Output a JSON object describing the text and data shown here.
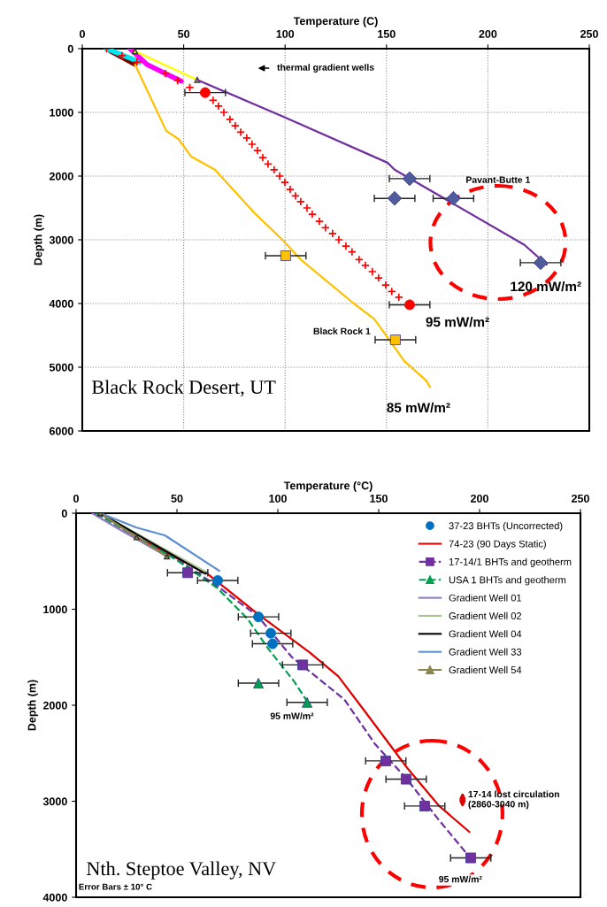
{
  "chart_data": [
    {
      "type": "line",
      "xlabel": "Temperature (C)",
      "ylabel": "Depth (m)",
      "xlim": [
        0,
        250
      ],
      "ylim": [
        6000,
        0
      ],
      "xticks": [
        0,
        50,
        100,
        150,
        200,
        250
      ],
      "yticks": [
        0,
        1000,
        2000,
        3000,
        4000,
        5000,
        6000
      ],
      "grid": true,
      "legend": false,
      "series": [
        {
          "color": "#800000",
          "x": [
            14,
            25.7
          ],
          "values": [
            40,
            240
          ],
          "marker": "none",
          "line_style": "solid"
        },
        {
          "color": "#00e5ee",
          "x": [
            12,
            28.3
          ],
          "values": [
            0,
            210
          ],
          "marker": "none",
          "line_style": "solid"
        },
        {
          "color": "#ff00ff",
          "x": [
            23.5,
            32,
            48.8
          ],
          "values": [
            0,
            250,
            510
          ],
          "marker": "none",
          "line_style": "solid"
        },
        {
          "color": "#ffff00",
          "x": [
            26,
            56.7
          ],
          "values": [
            40,
            490
          ],
          "marker": "triangle",
          "line_style": "solid"
        },
        {
          "color": "#7030a0",
          "x": [
            56.7,
            100,
            150.5,
            154,
            218,
            229
          ],
          "values": [
            490,
            1080,
            1790,
            1900,
            3080,
            3390
          ],
          "marker": "none",
          "line_style": "solid"
        },
        {
          "type": "scatter",
          "color": "#4f5b9a",
          "x": [
            161.4,
            154,
            183,
            226
          ],
          "values": [
            2040,
            2350,
            2350,
            3360
          ],
          "xerrors": [
            10,
            10,
            10,
            10
          ],
          "marker": "diamond"
        },
        {
          "type": "scatter",
          "color": "#ff0000",
          "x": [
            12,
            19.6,
            27,
            41,
            47,
            53,
            64.5,
            67.2,
            69.8,
            72.8,
            75.4,
            78.1,
            81.1,
            83.7,
            86.4,
            89,
            91.6,
            94.6,
            97.3,
            99.9,
            102.5,
            105.1,
            107.7,
            110.8,
            113.4,
            116.9,
            119.9,
            123.4,
            126.5,
            130,
            133,
            136.5,
            139.6,
            143,
            146.1,
            149.6,
            152.6,
            156.1
          ],
          "values": [
            0,
            110,
            210,
            390,
            500,
            610,
            810,
            900,
            1000,
            1110,
            1210,
            1310,
            1400,
            1500,
            1600,
            1710,
            1810,
            1900,
            2000,
            2100,
            2210,
            2310,
            2400,
            2500,
            2600,
            2710,
            2810,
            2900,
            3000,
            3100,
            3190,
            3310,
            3400,
            3500,
            3600,
            3710,
            3810,
            3900
          ],
          "marker": "cross"
        },
        {
          "type": "scatter",
          "color": "#ff0000",
          "x": [
            60.6,
            161.4
          ],
          "values": [
            690,
            4020
          ],
          "xerrors": [
            10,
            10
          ],
          "marker": "circle"
        },
        {
          "color": "#ffc000",
          "x": [
            26,
            41.4,
            47.5,
            53.6,
            65.4,
            84.6,
            99,
            107.7,
            133.9,
            143.9,
            150,
            158.7,
            169.6,
            171.4
          ],
          "values": [
            250,
            1290,
            1420,
            1690,
            1900,
            2570,
            3010,
            3310,
            4000,
            4240,
            4510,
            4900,
            5210,
            5310
          ],
          "marker": "none",
          "line_style": "solid"
        },
        {
          "type": "scatter",
          "color": "#ffc000",
          "x": [
            100.3,
            154.4
          ],
          "values": [
            3250,
            4570
          ],
          "xerrors": [
            10,
            10
          ],
          "marker": "square"
        }
      ],
      "annotations": [
        "thermal gradient wells",
        "Pavant-Butte 1",
        "Black Rock 1",
        "120 mW/m²",
        "95 mW/m²",
        "85 mW/m²",
        "Black Rock Desert, UT"
      ]
    },
    {
      "type": "line",
      "xlabel": "Temperature (°C)",
      "ylabel": "Depth (m)",
      "xlim": [
        0,
        250
      ],
      "ylim": [
        4000,
        0
      ],
      "xticks": [
        0,
        50,
        100,
        150,
        200,
        250
      ],
      "yticks": [
        0,
        1000,
        2000,
        3000,
        4000
      ],
      "grid": false,
      "legend": "top right",
      "series": [
        {
          "type": "scatter",
          "name": "37-23 BHTs (Uncorrected)",
          "color": "#0070c0",
          "x": [
            70.2,
            90.4,
            96.5,
            97.4
          ],
          "values": [
            700,
            1080,
            1250,
            1360
          ],
          "xerrors": [
            10,
            10,
            10,
            10
          ],
          "marker": "circle"
        },
        {
          "name": "74-23 (90 Days Static)",
          "color": "#e00000",
          "x": [
            12,
            30,
            50,
            64.5,
            89.5,
            115.8,
            130,
            143,
            164,
            180,
            195
          ],
          "values": [
            0,
            250,
            470,
            620,
            1040,
            1450,
            1700,
            2060,
            2650,
            3050,
            3320
          ],
          "marker": "none",
          "line_style": "solid"
        },
        {
          "color": "#7030a0",
          "x": [
            10,
            30,
            50,
            70,
            90,
            107,
            133,
            148,
            164,
            180,
            195
          ],
          "values": [
            0,
            250,
            480,
            760,
            1070,
            1500,
            1940,
            2400,
            2770,
            3200,
            3580
          ],
          "marker": "none",
          "line_style": "dashed"
        },
        {
          "type": "scatter",
          "name": "17-14/1 BHTs and geotherm",
          "color": "#7030a0",
          "x": [
            55.3,
            112.3,
            153.5,
            163.6,
            172.8,
            195.6
          ],
          "values": [
            620,
            1580,
            2580,
            2770,
            3050,
            3590
          ],
          "xerrors": [
            10,
            10,
            10,
            10,
            10,
            10
          ],
          "marker": "square",
          "line_style": "dashed"
        },
        {
          "color": "#00a050",
          "x": [
            10,
            30,
            50,
            70,
            85,
            95.2,
            108,
            114.5
          ],
          "values": [
            0,
            250,
            490,
            780,
            1100,
            1410,
            1750,
            1960
          ],
          "marker": "none",
          "line_style": "dashed"
        },
        {
          "type": "scatter",
          "name": "USA 1 BHTs and geotherm",
          "color": "#00a050",
          "x": [
            90.4,
            114.5
          ],
          "values": [
            1770,
            1970
          ],
          "xerrors": [
            10,
            10
          ],
          "marker": "triangle",
          "line_style": "dashed"
        },
        {
          "name": "Gradient Well 01",
          "color": "#8e7cc3",
          "x": [
            8,
            20,
            35,
            45
          ],
          "values": [
            0,
            150,
            330,
            450
          ],
          "marker": "none",
          "line_style": "solid"
        },
        {
          "name": "Gradient Well 02",
          "color": "#a9c48f",
          "x": [
            12,
            40,
            65
          ],
          "values": [
            0,
            330,
            620
          ],
          "marker": "none",
          "line_style": "solid"
        },
        {
          "name": "Gradient Well 04",
          "color": "#000000",
          "x": [
            12,
            35,
            64
          ],
          "values": [
            0,
            280,
            630
          ],
          "marker": "none",
          "line_style": "solid"
        },
        {
          "name": "Gradient Well 33",
          "color": "#5b8fd0",
          "x": [
            12,
            30,
            44,
            71
          ],
          "values": [
            0,
            150,
            230,
            600
          ],
          "marker": "none",
          "line_style": "solid"
        },
        {
          "name": "Gradient Well 54",
          "color": "#8b864e",
          "x": [
            12,
            30,
            45
          ],
          "values": [
            0,
            250,
            450
          ],
          "marker": "triangle",
          "line_style": "solid"
        }
      ],
      "annotations": [
        "95 mW/m²",
        "95 mW/m²",
        "17-14 lost circulation\n(2860-3040 m)",
        "Nth. Steptoe Valley, NV",
        "Error Bars ± 10° C"
      ]
    }
  ]
}
